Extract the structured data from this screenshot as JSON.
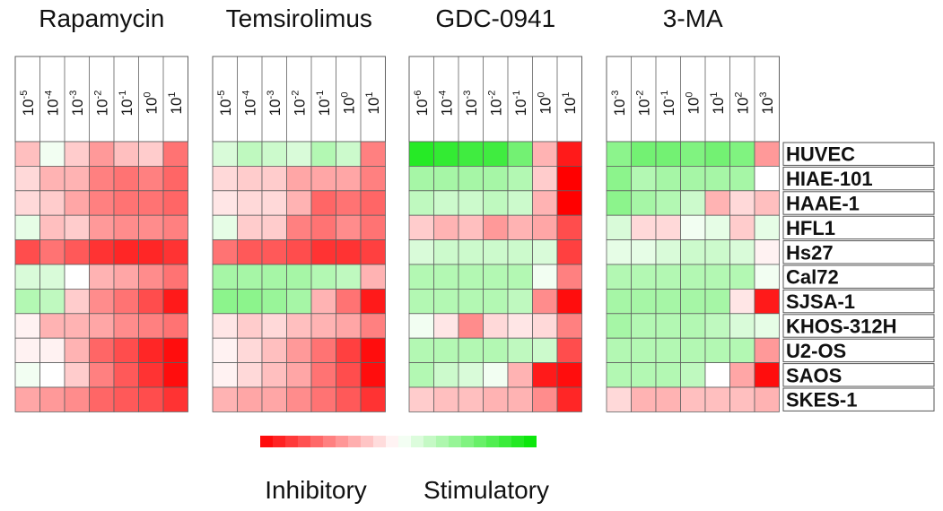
{
  "chart_data": {
    "type": "heatmap",
    "panels": [
      {
        "title": "Rapamycin",
        "concentrations": [
          "10-5",
          "10-4",
          "10-3",
          "10-2",
          "10-1",
          "100",
          "101"
        ],
        "values": [
          [
            -0.25,
            0.05,
            -0.2,
            -0.4,
            -0.25,
            -0.2,
            -0.55
          ],
          [
            -0.15,
            -0.3,
            -0.3,
            -0.5,
            -0.55,
            -0.5,
            -0.6
          ],
          [
            -0.15,
            -0.2,
            -0.35,
            -0.5,
            -0.55,
            -0.55,
            -0.6
          ],
          [
            0.1,
            -0.25,
            -0.2,
            -0.4,
            -0.45,
            -0.45,
            -0.5
          ],
          [
            -0.7,
            -0.55,
            -0.65,
            -0.8,
            -0.85,
            -0.85,
            -0.8
          ],
          [
            0.15,
            0.15,
            0.0,
            -0.3,
            -0.35,
            -0.45,
            -0.55
          ],
          [
            0.3,
            0.25,
            -0.2,
            -0.45,
            -0.55,
            -0.7,
            -0.9
          ],
          [
            -0.05,
            -0.3,
            -0.3,
            -0.35,
            -0.45,
            -0.5,
            -0.55
          ],
          [
            -0.05,
            -0.05,
            -0.3,
            -0.6,
            -0.7,
            -0.85,
            -0.95
          ],
          [
            0.05,
            0.0,
            -0.2,
            -0.5,
            -0.65,
            -0.8,
            -0.95
          ],
          [
            -0.35,
            -0.4,
            -0.45,
            -0.6,
            -0.65,
            -0.7,
            -0.8
          ]
        ]
      },
      {
        "title": "Temsirolimus",
        "concentrations": [
          "10-5",
          "10-4",
          "10-3",
          "10-2",
          "10-1",
          "100",
          "101"
        ],
        "values": [
          [
            0.15,
            0.25,
            0.2,
            0.15,
            0.3,
            0.2,
            -0.5
          ],
          [
            -0.15,
            -0.2,
            -0.2,
            -0.35,
            -0.35,
            -0.35,
            -0.5
          ],
          [
            -0.1,
            -0.15,
            -0.15,
            -0.3,
            -0.6,
            -0.55,
            -0.6
          ],
          [
            0.1,
            -0.2,
            -0.2,
            -0.5,
            -0.55,
            -0.45,
            -0.55
          ],
          [
            -0.55,
            -0.65,
            -0.65,
            -0.7,
            -0.8,
            -0.8,
            -0.75
          ],
          [
            0.35,
            0.35,
            0.35,
            0.35,
            0.3,
            0.25,
            -0.3
          ],
          [
            0.45,
            0.45,
            0.4,
            0.35,
            -0.3,
            -0.55,
            -0.9
          ],
          [
            -0.1,
            -0.2,
            -0.15,
            -0.25,
            -0.3,
            -0.35,
            -0.5
          ],
          [
            -0.05,
            -0.15,
            -0.25,
            -0.4,
            -0.55,
            -0.75,
            -0.95
          ],
          [
            -0.05,
            -0.15,
            -0.25,
            -0.35,
            -0.55,
            -0.7,
            -0.95
          ],
          [
            -0.3,
            -0.35,
            -0.35,
            -0.45,
            -0.55,
            -0.65,
            -0.8
          ]
        ]
      },
      {
        "title": "GDC-0941",
        "concentrations": [
          "10-6",
          "10-4",
          "10-3",
          "10-2",
          "10-1",
          "100",
          "101"
        ],
        "values": [
          [
            0.85,
            0.8,
            0.75,
            0.75,
            0.55,
            -0.3,
            -0.9
          ],
          [
            0.35,
            0.35,
            0.35,
            0.35,
            0.3,
            -0.2,
            -1.0
          ],
          [
            0.25,
            0.2,
            0.2,
            0.25,
            0.2,
            -0.3,
            -1.0
          ],
          [
            -0.2,
            -0.3,
            -0.25,
            -0.4,
            -0.3,
            -0.35,
            -0.7
          ],
          [
            0.15,
            0.2,
            0.2,
            0.2,
            0.2,
            0.15,
            -0.75
          ],
          [
            0.3,
            0.3,
            0.3,
            0.3,
            0.3,
            0.05,
            -0.5
          ],
          [
            0.3,
            0.3,
            0.3,
            0.3,
            0.25,
            -0.45,
            -0.95
          ],
          [
            0.05,
            -0.1,
            -0.45,
            -0.15,
            -0.1,
            -0.15,
            -0.5
          ],
          [
            0.3,
            0.3,
            0.3,
            0.3,
            0.25,
            0.2,
            -0.7
          ],
          [
            0.3,
            0.2,
            0.15,
            0.05,
            -0.3,
            -0.9,
            -0.95
          ],
          [
            -0.2,
            -0.25,
            -0.25,
            -0.3,
            -0.3,
            -0.45,
            -0.85
          ]
        ]
      },
      {
        "title": "3-MA",
        "concentrations": [
          "10-3",
          "10-2",
          "10-1",
          "100",
          "101",
          "102",
          "103"
        ],
        "values": [
          [
            0.45,
            0.55,
            0.55,
            0.5,
            0.55,
            0.5,
            -0.4
          ],
          [
            0.45,
            0.3,
            0.35,
            0.35,
            0.35,
            0.35,
            0.0
          ],
          [
            0.45,
            0.35,
            0.3,
            0.2,
            -0.3,
            -0.15,
            -0.25
          ],
          [
            0.15,
            -0.15,
            -0.15,
            0.05,
            0.1,
            -0.2,
            0.1
          ],
          [
            0.1,
            0.1,
            0.15,
            0.2,
            0.2,
            0.15,
            -0.05
          ],
          [
            0.3,
            0.3,
            0.3,
            0.3,
            0.3,
            0.3,
            0.05
          ],
          [
            0.35,
            0.35,
            0.35,
            0.35,
            0.35,
            -0.1,
            -0.9
          ],
          [
            0.35,
            0.3,
            0.3,
            0.3,
            0.25,
            0.15,
            0.1
          ],
          [
            0.3,
            0.3,
            0.3,
            0.3,
            0.3,
            0.3,
            -0.4
          ],
          [
            0.3,
            0.3,
            0.3,
            0.25,
            0.0,
            -0.35,
            -0.95
          ],
          [
            -0.15,
            -0.3,
            -0.3,
            -0.25,
            -0.25,
            -0.25,
            -0.3
          ]
        ]
      }
    ],
    "rows": [
      "HUVEC",
      "HIAE-101",
      "HAAE-1",
      "HFL1",
      "Hs27",
      "Cal72",
      "SJSA-1",
      "KHOS-312H",
      "U2-OS",
      "SAOS",
      "SKES-1"
    ],
    "scale": {
      "min_label": "Inhibitory",
      "max_label": "Stimulatory",
      "range": [
        -1,
        1
      ],
      "min_color": "#ff0000",
      "max_color": "#00e600",
      "mid_color": "#ffffff"
    }
  },
  "colors": {
    "grid_line": "#606060",
    "label_box_border": "#555555",
    "text": "#111111"
  }
}
